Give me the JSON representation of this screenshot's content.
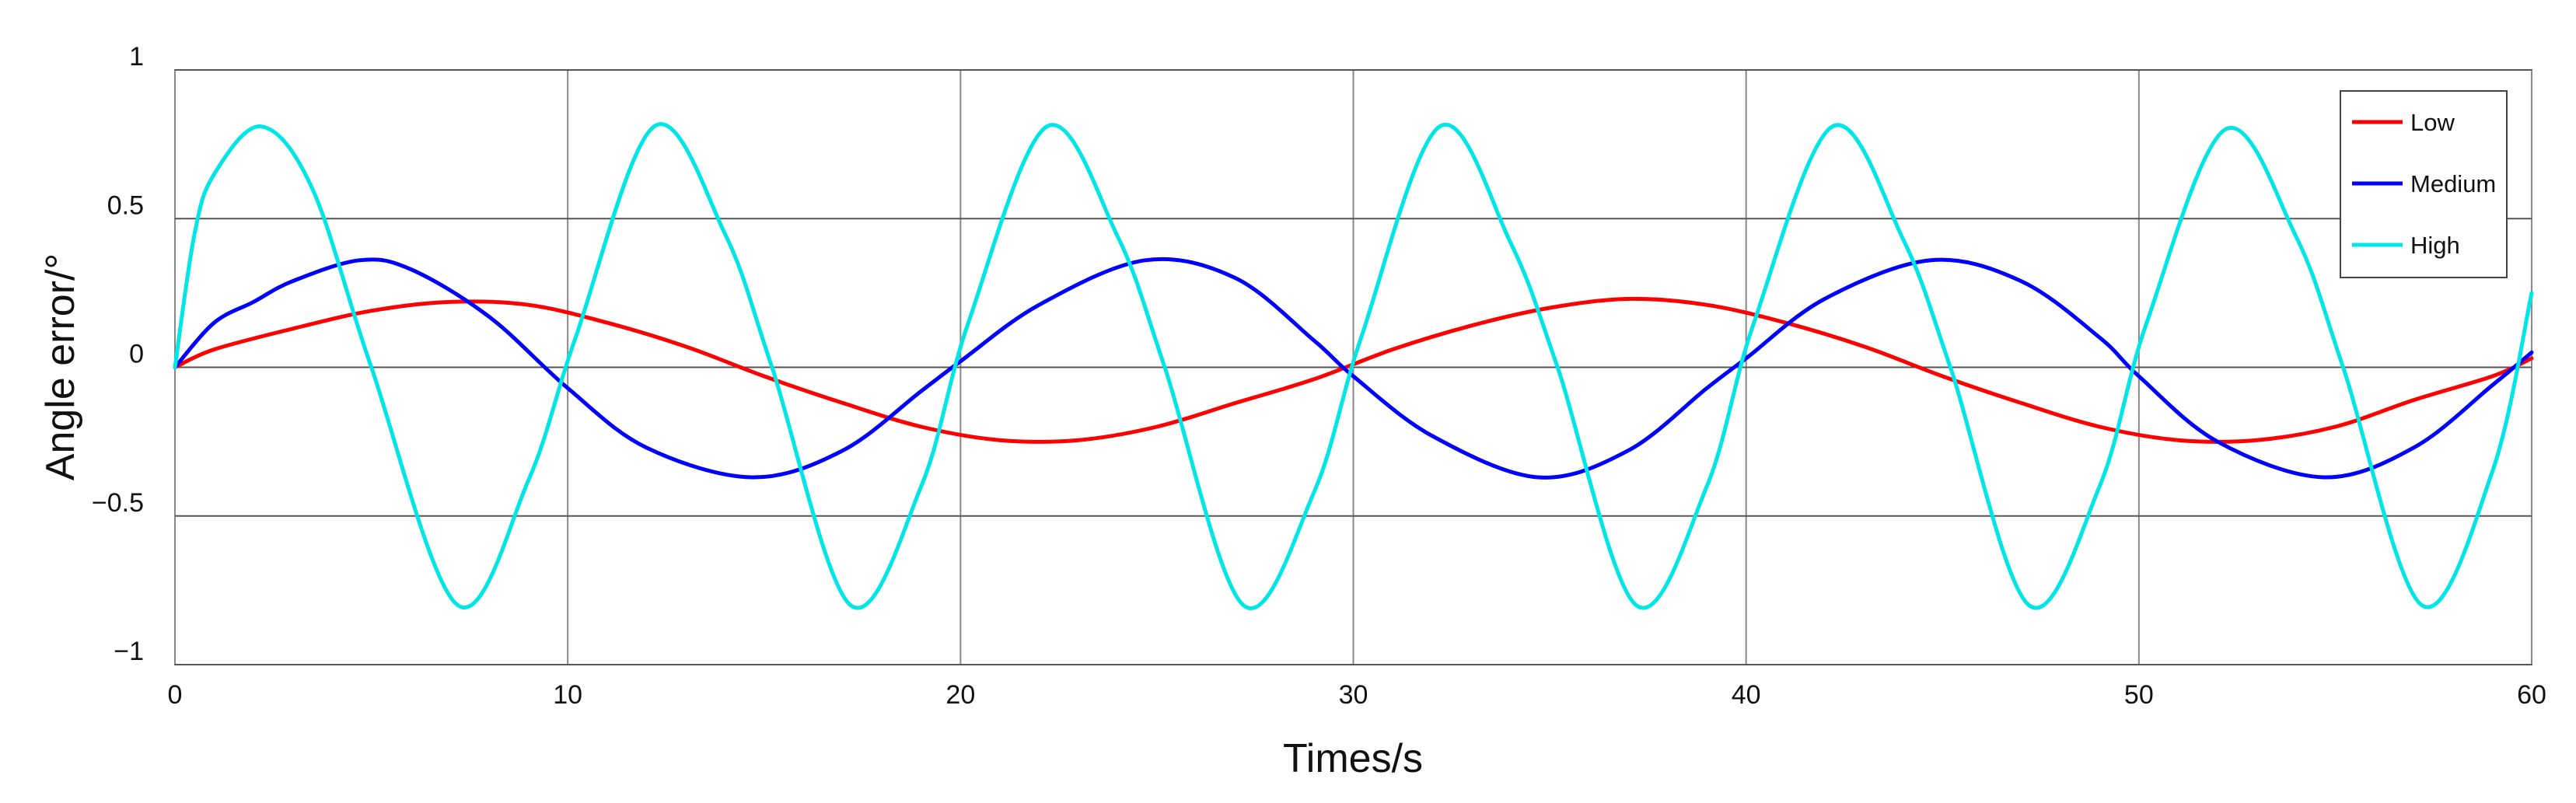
{
  "chart_data": {
    "type": "line",
    "title": "",
    "xlabel": "Times/s",
    "ylabel": "Angle error/°",
    "xlim": [
      0,
      60
    ],
    "ylim": [
      -1,
      1
    ],
    "xticks": [
      0,
      10,
      20,
      30,
      40,
      50,
      60
    ],
    "yticks": [
      1,
      0.5,
      0,
      -0.5,
      -1
    ],
    "ytick_labels": [
      "1",
      "0.5",
      "0",
      "−0.5",
      "−1"
    ],
    "grid": true,
    "legend_position": "top-right",
    "series": [
      {
        "name": "Low",
        "color": "#ff0000",
        "x": [
          0,
          1,
          3,
          5,
          7,
          9,
          11,
          13,
          15,
          17,
          19,
          21,
          23,
          25,
          27,
          29,
          31,
          33,
          35,
          37,
          39,
          41,
          43,
          45,
          47,
          49,
          51,
          53,
          55,
          57,
          59,
          60
        ],
        "y": [
          0,
          0.06,
          0.13,
          0.19,
          0.22,
          0.21,
          0.15,
          0.07,
          -0.03,
          -0.12,
          -0.2,
          -0.245,
          -0.245,
          -0.2,
          -0.12,
          -0.04,
          0.06,
          0.14,
          0.2,
          0.23,
          0.21,
          0.15,
          0.07,
          -0.03,
          -0.12,
          -0.2,
          -0.245,
          -0.245,
          -0.2,
          -0.11,
          -0.03,
          0.03
        ]
      },
      {
        "name": "Medium",
        "color": "#0000ff",
        "x": [
          0,
          1,
          2,
          3,
          4.7,
          6,
          8,
          10,
          12,
          14.7,
          17,
          19,
          20,
          22,
          24.7,
          27,
          29,
          30,
          32,
          34.7,
          37,
          39,
          40,
          42,
          44.7,
          47,
          49,
          50,
          52,
          54.7,
          57,
          59,
          60
        ],
        "y": [
          0,
          0.15,
          0.22,
          0.29,
          0.36,
          0.33,
          0.17,
          -0.07,
          -0.27,
          -0.37,
          -0.28,
          -0.08,
          0.02,
          0.21,
          0.36,
          0.3,
          0.09,
          -0.03,
          -0.23,
          -0.37,
          -0.28,
          -0.07,
          0.03,
          0.23,
          0.36,
          0.29,
          0.1,
          -0.03,
          -0.25,
          -0.37,
          -0.27,
          -0.06,
          0.05
        ]
      },
      {
        "name": "High",
        "color": "#00e5e5",
        "x": [
          0,
          0.5,
          1,
          2.2,
          3.5,
          5,
          7.2,
          9,
          10.2,
          12.2,
          14,
          15.2,
          17.2,
          19,
          20.2,
          22.2,
          24,
          25.2,
          27.2,
          29,
          30.2,
          32.2,
          34,
          35.2,
          37.2,
          39,
          40.2,
          42.2,
          44,
          45.2,
          47.2,
          49,
          50.2,
          52.2,
          54,
          55.2,
          57.2,
          59,
          60
        ],
        "y": [
          0,
          0.45,
          0.65,
          0.81,
          0.6,
          0.0,
          -0.8,
          -0.38,
          0.1,
          0.81,
          0.45,
          0.0,
          -0.8,
          -0.4,
          0.15,
          0.81,
          0.44,
          0.0,
          -0.8,
          -0.42,
          0.1,
          0.81,
          0.42,
          0.0,
          -0.8,
          -0.4,
          0.15,
          0.81,
          0.43,
          0.0,
          -0.8,
          -0.4,
          0.15,
          0.8,
          0.44,
          0.0,
          -0.8,
          -0.35,
          0.25
        ]
      }
    ]
  }
}
